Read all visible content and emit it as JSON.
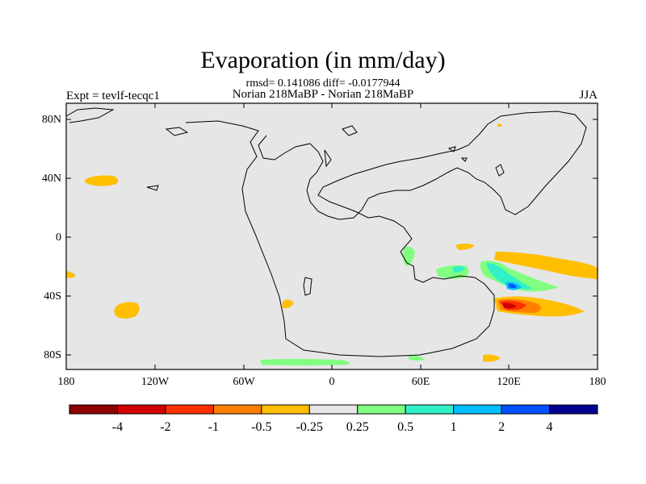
{
  "header": {
    "title": "Evaporation (in mm/day)",
    "subtitle": "rmsd= 0.141086 diff= -0.0177944",
    "center_label": "Norian 218MaBP - Norian 218MaBP",
    "left_label": "Expt = tevlf-tecqc1",
    "right_label": "JJA"
  },
  "map": {
    "lat_labels": [
      "80N",
      "40N",
      "0",
      "40S",
      "80S"
    ],
    "lon_labels": [
      "180",
      "120W",
      "60W",
      "0",
      "60E",
      "120E",
      "180"
    ],
    "background_color": "#e6e6e6",
    "coastline_color": "#000000"
  },
  "colorbar": {
    "colors": [
      "#8b0000",
      "#d00000",
      "#ff3000",
      "#ff8000",
      "#ffbf00",
      "#e6e6e6",
      "#80ff80",
      "#30f0c8",
      "#00bfff",
      "#0050ff",
      "#000090"
    ],
    "labels": [
      "-4",
      "-2",
      "-1",
      "-0.5",
      "-0.25",
      "0.25",
      "0.5",
      "1",
      "2",
      "4"
    ]
  }
}
